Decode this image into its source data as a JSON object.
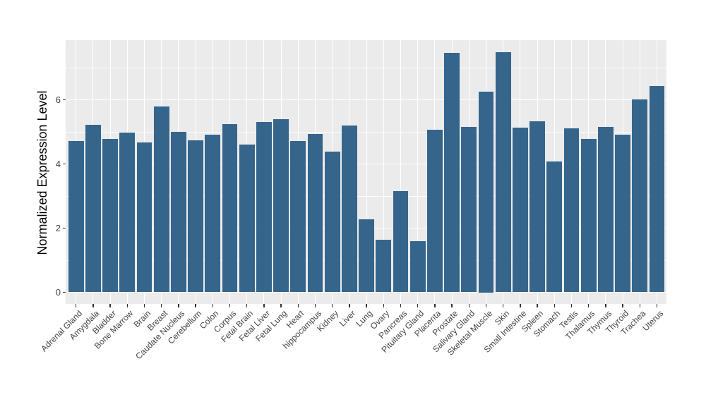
{
  "figure": {
    "background": "#FFFFFF"
  },
  "chart_data": {
    "type": "bar",
    "title": "",
    "xlabel": "",
    "ylabel": "Normalized Expression Level",
    "legend": "none",
    "grid": "on",
    "ylim": [
      0,
      7.85
    ],
    "yticks": [
      0,
      2,
      4,
      6
    ],
    "yticks_minor": [
      1,
      3,
      5,
      7
    ],
    "bar_color": "#36658C",
    "panel_background": "#EBEBEB",
    "grid_color": "#FFFFFF",
    "tick_label_color": "#444444",
    "axis_title_color": "#000000",
    "categories": [
      "Adrenal Gland",
      "Amygdala",
      "Bladder",
      "Bone Marrow",
      "Brain",
      "Breast",
      "Caudate Nucleus",
      "Cerebellum",
      "Colon",
      "Corpus",
      "Fetal Brain",
      "Fetal Liver",
      "Fetal Lung",
      "Heart",
      "hippocampus",
      "Kidney",
      "Liver",
      "Lung",
      "Ovary",
      "Pancreas",
      "Pituitary Gland",
      "Placenta",
      "Prostate",
      "Salivary Gland",
      "Skeletal Muscle",
      "Skin",
      "Small Intestine",
      "Spleen",
      "Stomach",
      "Testis",
      "Thalamus",
      "Thymus",
      "Thyroid",
      "Trachea",
      "Uterus"
    ],
    "values": [
      4.71,
      5.22,
      4.78,
      4.97,
      4.67,
      5.79,
      4.99,
      4.73,
      4.92,
      5.24,
      4.6,
      5.31,
      5.4,
      4.71,
      4.93,
      4.38,
      5.19,
      2.27,
      1.64,
      3.15,
      1.6,
      5.07,
      7.46,
      5.16,
      6.25,
      7.49,
      5.13,
      5.34,
      4.07,
      5.12,
      4.77,
      5.15,
      4.91,
      6.02,
      6.42
    ]
  }
}
